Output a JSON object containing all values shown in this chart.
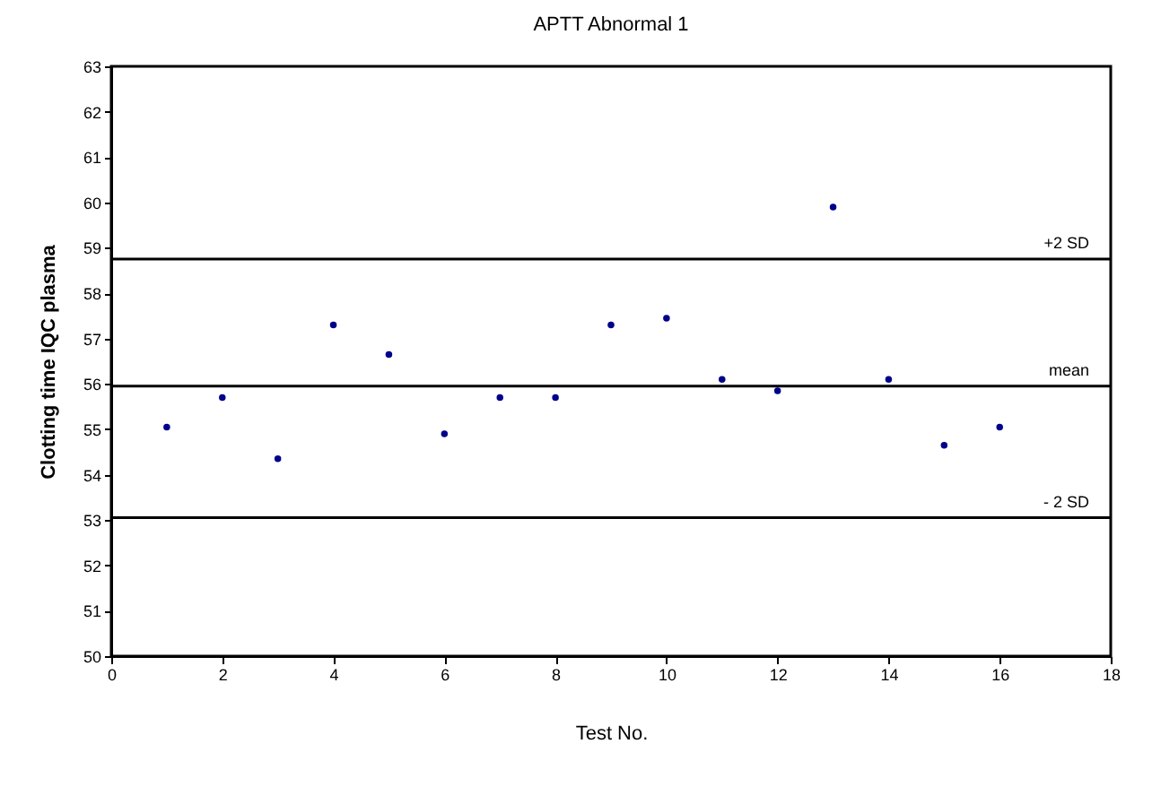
{
  "chart_data": {
    "type": "scatter",
    "title": "APTT Abnormal 1",
    "xlabel": "Test No.",
    "ylabel": "Clotting time IQC plasma",
    "x": [
      1,
      2,
      3,
      4,
      5,
      6,
      7,
      8,
      9,
      10,
      11,
      12,
      13,
      14,
      15,
      16
    ],
    "series": [
      {
        "color": "#00008b",
        "values": [
          55.05,
          55.7,
          54.35,
          57.3,
          56.65,
          54.9,
          55.7,
          55.7,
          57.3,
          57.45,
          56.1,
          55.85,
          59.9,
          56.1,
          54.65,
          55.05
        ]
      }
    ],
    "xlim": [
      0,
      18
    ],
    "xticks": [
      0,
      2,
      4,
      6,
      8,
      10,
      12,
      14,
      16,
      18
    ],
    "ylim": [
      50,
      63
    ],
    "yticks": [
      50,
      51,
      52,
      53,
      54,
      55,
      56,
      57,
      58,
      59,
      60,
      61,
      62,
      63
    ],
    "ref_lines": [
      {
        "axis": "y",
        "value": 58.75,
        "label": "+2 SD",
        "color": "#000000"
      },
      {
        "axis": "y",
        "value": 55.95,
        "label": "mean",
        "color": "#000000"
      },
      {
        "axis": "y",
        "value": 53.05,
        "label": "- 2 SD",
        "color": "#000000"
      }
    ],
    "grid": false,
    "marker": "circle"
  }
}
